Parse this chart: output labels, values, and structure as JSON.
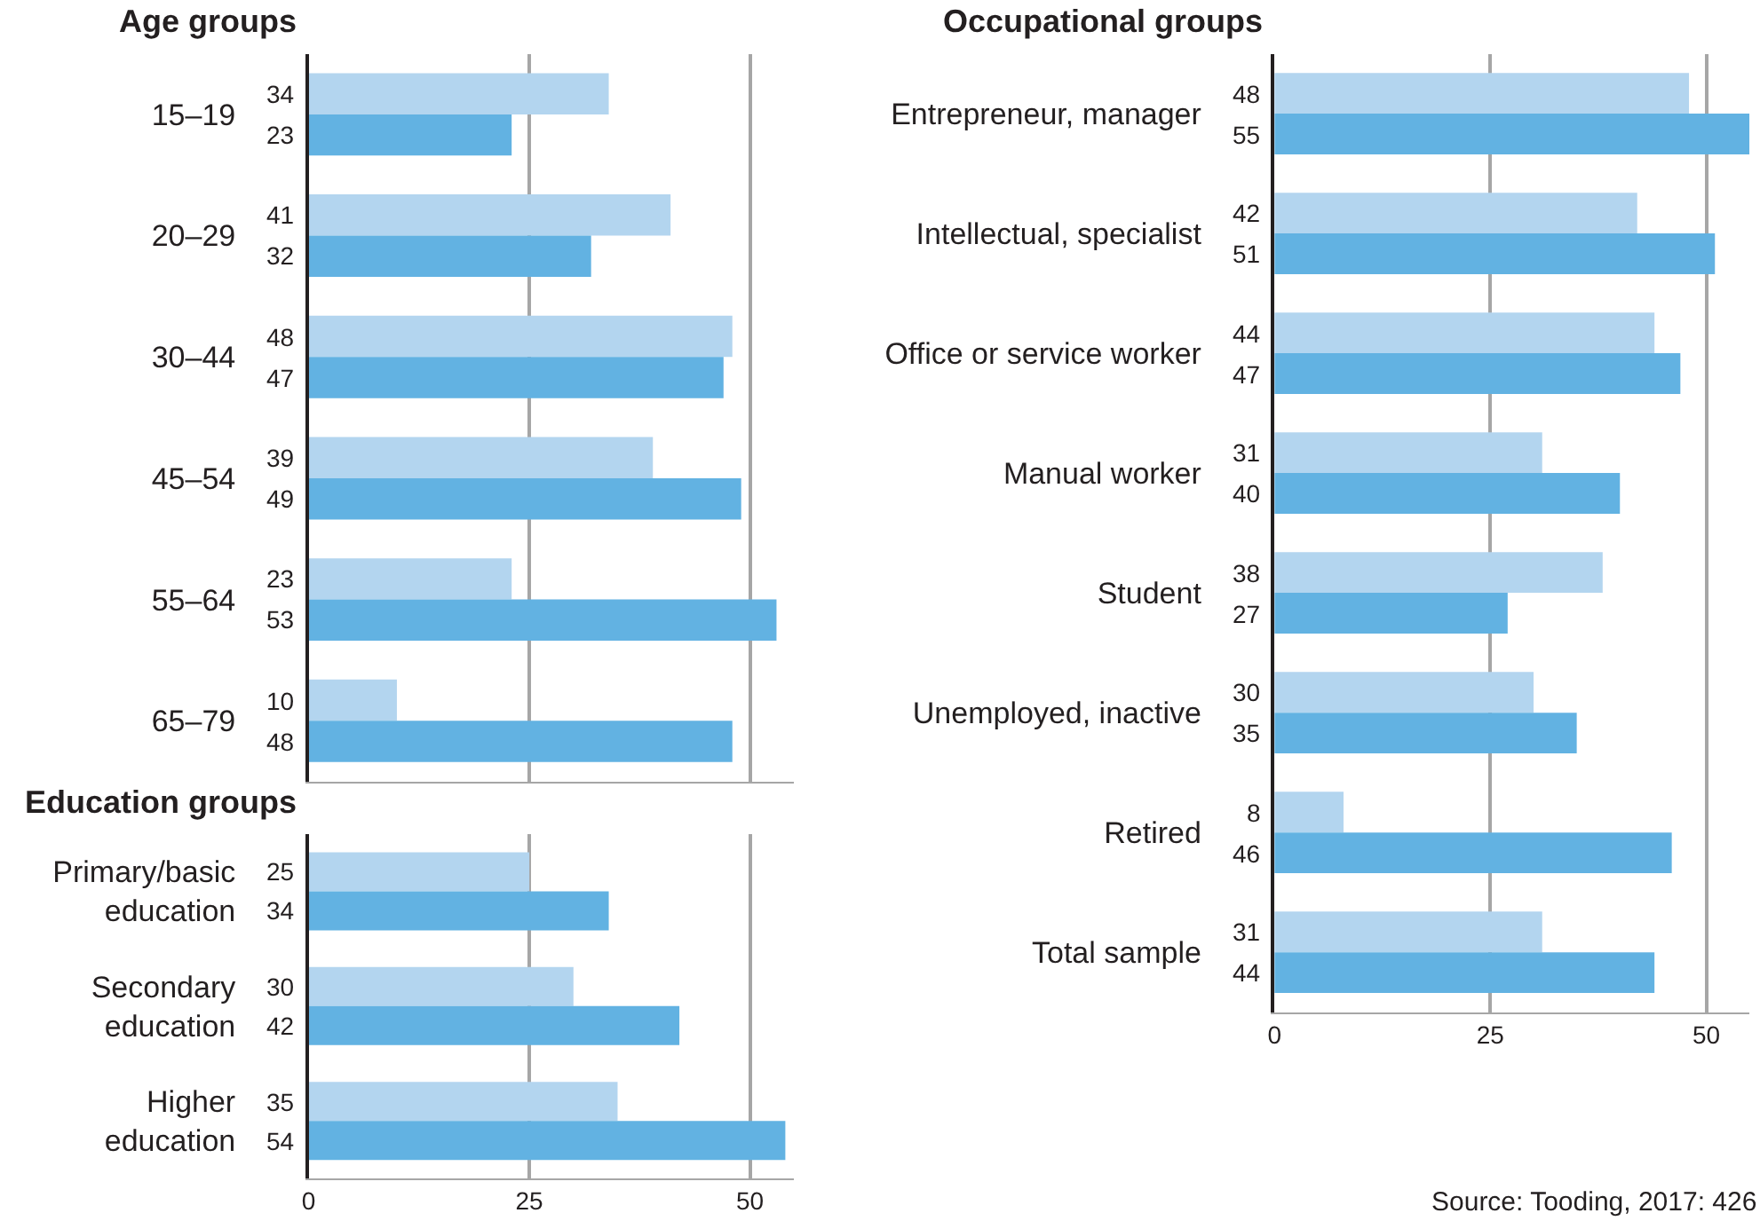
{
  "chart_data": [
    {
      "type": "bar",
      "orientation": "horizontal",
      "title": "Age groups",
      "categories": [
        "15–19",
        "20–29",
        "30–44",
        "45–54",
        "55–64",
        "65–79"
      ],
      "series": [
        {
          "color": "#b3d5ef",
          "values": [
            34,
            41,
            48,
            39,
            23,
            10
          ]
        },
        {
          "color": "#62b2e2",
          "values": [
            23,
            32,
            47,
            49,
            53,
            48
          ]
        }
      ],
      "xlim": [
        0,
        55
      ],
      "xticks": [
        0,
        25,
        50
      ],
      "grid": "x",
      "data_labels": true,
      "tick_labels": "y"
    },
    {
      "type": "bar",
      "orientation": "horizontal",
      "title": "Education groups",
      "categories": [
        "Primary/basic\neducation",
        "Secondary\neducation",
        "Higher\neducation"
      ],
      "series": [
        {
          "color": "#b3d5ef",
          "values": [
            25,
            30,
            35
          ]
        },
        {
          "color": "#62b2e2",
          "values": [
            34,
            42,
            54
          ]
        }
      ],
      "xlim": [
        0,
        55
      ],
      "xticks": [
        0,
        25,
        50
      ],
      "grid": "x",
      "data_labels": true
    },
    {
      "type": "bar",
      "orientation": "horizontal",
      "title": "Occupational groups",
      "categories": [
        "Entrepreneur, manager",
        "Intellectual, specialist",
        "Office or service worker",
        "Manual worker",
        "Student",
        "Unemployed, inactive",
        "Retired",
        "Total sample"
      ],
      "series": [
        {
          "color": "#b3d5ef",
          "values": [
            48,
            42,
            44,
            31,
            38,
            30,
            8,
            31
          ]
        },
        {
          "color": "#62b2e2",
          "values": [
            55,
            51,
            47,
            40,
            27,
            35,
            46,
            44
          ]
        }
      ],
      "xlim": [
        0,
        55
      ],
      "xticks": [
        0,
        25,
        50
      ],
      "grid": "x",
      "data_labels": true,
      "annotations": [
        "Source: Tooding, 2017: 426"
      ]
    }
  ]
}
